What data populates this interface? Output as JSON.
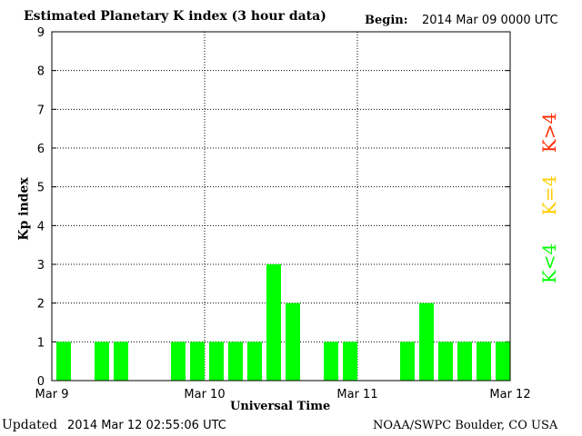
{
  "chart_data": {
    "type": "bar",
    "title": "Estimated Planetary K index (3 hour data)",
    "begin_label": "Begin:",
    "begin_value": "2014 Mar 09 0000 UTC",
    "xlabel": "Universal Time",
    "ylabel": "Kp index",
    "ylim": [
      0,
      9
    ],
    "yticks": [
      "0",
      "1",
      "2",
      "3",
      "4",
      "5",
      "6",
      "7",
      "8",
      "9"
    ],
    "xticks": [
      "Mar 9",
      "Mar 10",
      "Mar 11",
      "Mar 12"
    ],
    "bins_per_day": 8,
    "values": [
      1,
      0,
      1,
      1,
      0,
      0,
      1,
      1,
      1,
      1,
      1,
      3,
      2,
      0,
      1,
      1,
      0,
      0,
      1,
      2,
      1,
      1,
      1,
      1
    ],
    "bar_color": "#00ff00",
    "grid": "dotted",
    "legend": [
      {
        "label": "K<4",
        "color": "#00ff00"
      },
      {
        "label": "K=4",
        "color": "#ffcc00"
      },
      {
        "label": "K>4",
        "color": "#ff2a00"
      }
    ]
  },
  "footer": {
    "updated_label": "Updated",
    "updated_value": "2014 Mar 12 02:55:06 UTC",
    "credit": "NOAA/SWPC Boulder, CO USA"
  }
}
